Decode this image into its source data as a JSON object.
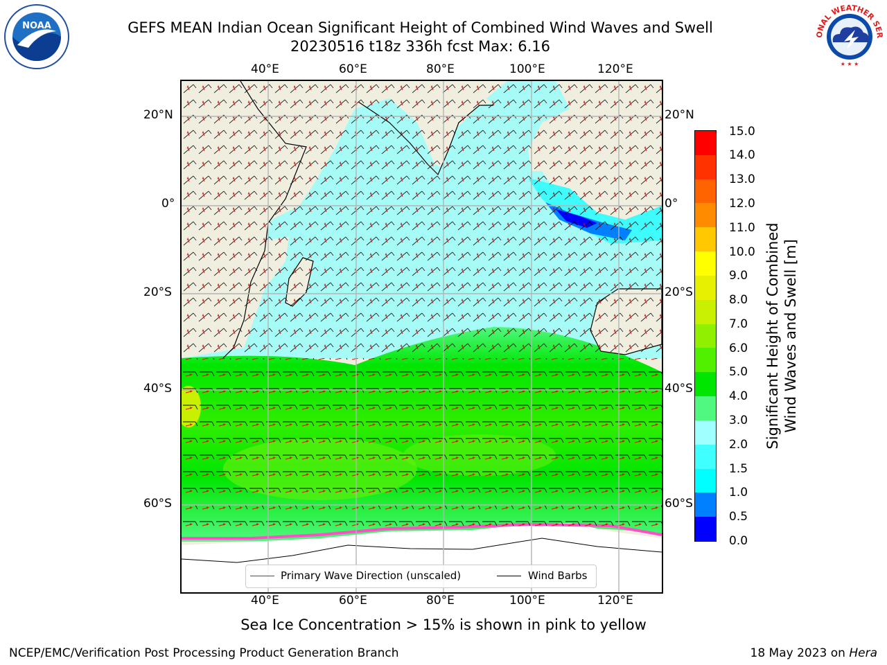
{
  "header": {
    "title_line1": "GEFS MEAN Indian Ocean Significant Height of Combined Wind Waves and Swell",
    "title_line2": "20230516 t18z 336h fcst   Max: 6.16"
  },
  "logos": {
    "left": {
      "text": "NOAA",
      "ring_text": "NATIONAL OCEANIC AND ATMOSPHERIC ADMINISTRATION · U.S. DEPARTMENT OF COMMERCE"
    },
    "right": {
      "ring_text": "NATIONAL WEATHER SERVICE"
    }
  },
  "map": {
    "lon_ticks_top": [
      "40°E",
      "60°E",
      "80°E",
      "100°E",
      "120°E"
    ],
    "lon_ticks_bottom": [
      "40°E",
      "60°E",
      "80°E",
      "100°E",
      "120°E"
    ],
    "lat_ticks_left": [
      "20°N",
      "0°",
      "20°S",
      "40°S",
      "60°S"
    ],
    "lat_ticks_right": [
      "20°N",
      "0°",
      "20°S",
      "40°S",
      "60°S"
    ],
    "colors": {
      "land": "#efeedf",
      "ocean_low": "#a6fbf7",
      "ice": "#ffffff"
    }
  },
  "legend": {
    "wave_dir": "Primary Wave Direction (unscaled)",
    "wind_barbs": "Wind Barbs"
  },
  "colorbar": {
    "label_line1": "Significant Height of Combined",
    "label_line2": "Wind Waves and Swell [m]",
    "levels": [
      "0.0",
      "0.5",
      "1.0",
      "1.5",
      "2.0",
      "3.0",
      "4.0",
      "5.0",
      "6.0",
      "7.0",
      "8.0",
      "9.0",
      "10.0",
      "11.0",
      "12.0",
      "13.0",
      "14.0",
      "15.0"
    ],
    "colors": [
      "#0000ff",
      "#0080ff",
      "#00ffff",
      "#40ffff",
      "#a0ffff",
      "#50f880",
      "#00e600",
      "#50f000",
      "#90f000",
      "#c8f000",
      "#e6f000",
      "#ffff00",
      "#ffc800",
      "#ff8c00",
      "#ff6400",
      "#ff3200",
      "#ff0000"
    ]
  },
  "note": "Sea Ice Concentration > 15% is shown in pink to yellow",
  "footer": {
    "left": "NCEP/EMC/Verification Post Processing Product Generation Branch",
    "right_prefix": "18 May 2023 on ",
    "right_machine": "Hera"
  }
}
